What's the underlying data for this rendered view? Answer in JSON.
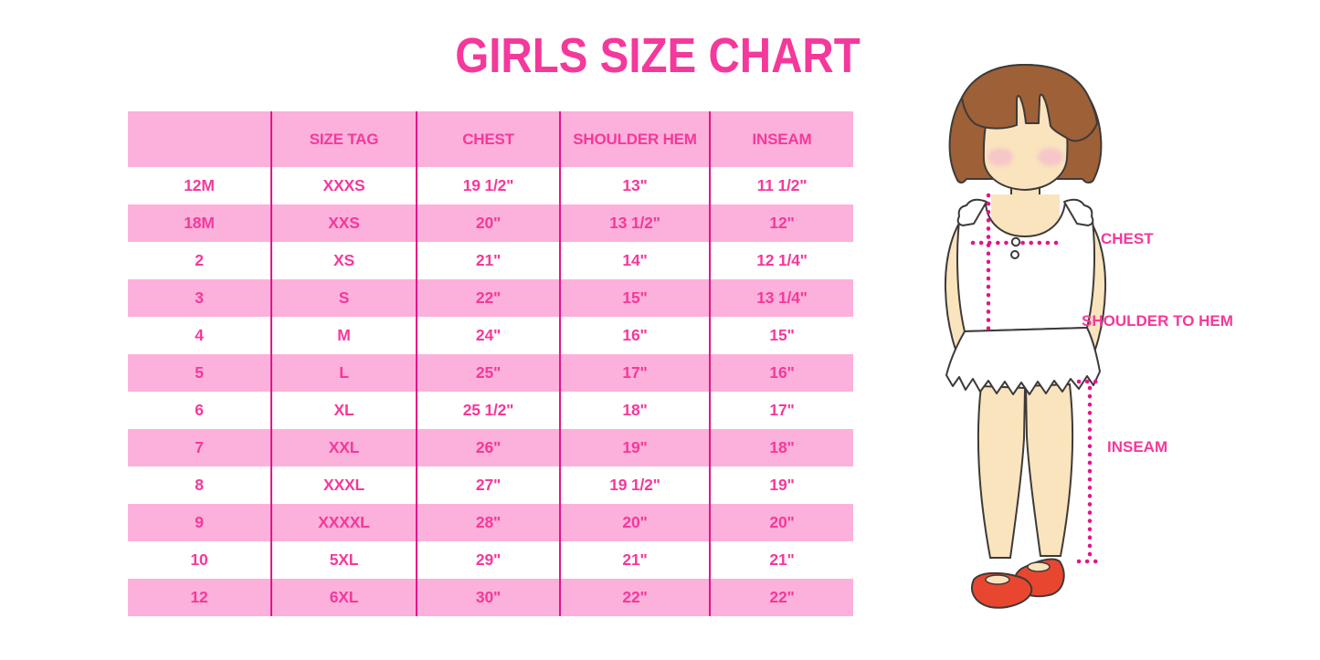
{
  "title": "GIRLS SIZE CHART",
  "colors": {
    "accent_pink": "#F5389B",
    "row_pink": "#FBB1DB",
    "line_magenta": "#E3148C",
    "hair_brown": "#9E6036",
    "outline_dark": "#3E3A39",
    "skin": "#F9E4BD",
    "blush_pink": "#F6BFCC",
    "shoe_red": "#E94630",
    "background": "#FFFFFF"
  },
  "chart_data": {
    "type": "table",
    "title": "GIRLS SIZE CHART",
    "columns": [
      "",
      "SIZE TAG",
      "CHEST",
      "SHOULDER HEM",
      "INSEAM"
    ],
    "rows": [
      [
        "12M",
        "XXXS",
        "19 1/2\"",
        "13\"",
        "11 1/2\""
      ],
      [
        "18M",
        "XXS",
        "20\"",
        "13 1/2\"",
        "12\""
      ],
      [
        "2",
        "XS",
        "21\"",
        "14\"",
        "12 1/4\""
      ],
      [
        "3",
        "S",
        "22\"",
        "15\"",
        "13 1/4\""
      ],
      [
        "4",
        "M",
        "24\"",
        "16\"",
        "15\""
      ],
      [
        "5",
        "L",
        "25\"",
        "17\"",
        "16\""
      ],
      [
        "6",
        "XL",
        "25 1/2\"",
        "18\"",
        "17\""
      ],
      [
        "7",
        "XXL",
        "26\"",
        "19\"",
        "18\""
      ],
      [
        "8",
        "XXXL",
        "27\"",
        "19 1/2\"",
        "19\""
      ],
      [
        "9",
        "XXXXL",
        "28\"",
        "20\"",
        "20\""
      ],
      [
        "10",
        "5XL",
        "29\"",
        "21\"",
        "21\""
      ],
      [
        "12",
        "6XL",
        "30\"",
        "22\"",
        "22\""
      ]
    ]
  },
  "figure": {
    "labels": {
      "chest": "CHEST",
      "shoulder_to_hem": "SHOULDER TO HEM",
      "inseam": "INSEAM"
    }
  }
}
